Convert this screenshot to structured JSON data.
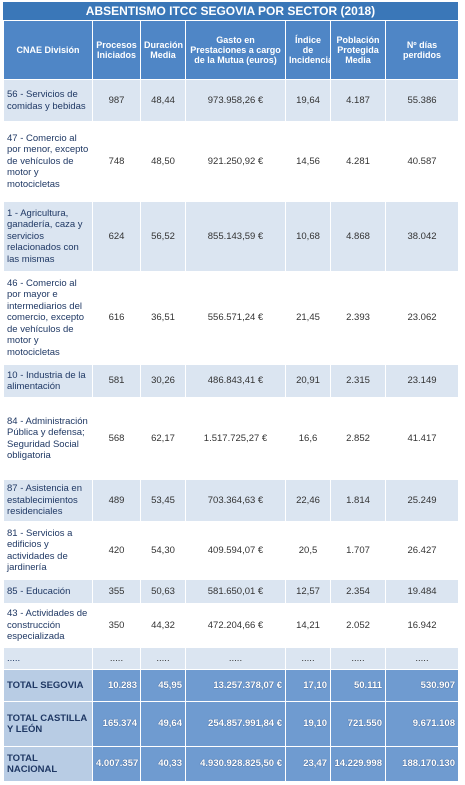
{
  "title": "ABSENTISMO ITCC SEGOVIA POR SECTOR (2018)",
  "table": {
    "headers": [
      "CNAE División",
      "Procesos Iniciados",
      "Duración Media",
      "Gasto en Prestaciones a cargo de la Mutua (euros)",
      "Índice de Incidencia",
      "Población Protegida Media",
      "Nº días perdidos"
    ],
    "rows": [
      [
        "56 - Servicios de comidas y bebidas",
        "987",
        "48,44",
        "973.958,26 €",
        "19,64",
        "4.187",
        "55.386"
      ],
      [
        "47 - Comercio al por menor, excepto de vehículos de motor y motocicletas",
        "748",
        "48,50",
        "921.250,92 €",
        "14,56",
        "4.281",
        "40.587"
      ],
      [
        "1 - Agricultura, ganadería, caza y servicios relacionados con las mismas",
        "624",
        "56,52",
        "855.143,59 €",
        "10,68",
        "4.868",
        "38.042"
      ],
      [
        "46 - Comercio al por mayor e intermediarios del comercio, excepto de vehículos de motor y motocicletas",
        "616",
        "36,51",
        "556.571,24 €",
        "21,45",
        "2.393",
        "23.062"
      ],
      [
        "10 - Industria de la alimentación",
        "581",
        "30,26",
        "486.843,41 €",
        "20,91",
        "2.315",
        "23.149"
      ],
      [
        "84 - Administración Pública y defensa; Seguridad Social obligatoria",
        "568",
        "62,17",
        "1.517.725,27 €",
        "16,6",
        "2.852",
        "41.417"
      ],
      [
        "87 - Asistencia en establecimientos residenciales",
        "489",
        "53,45",
        "703.364,63 €",
        "22,46",
        "1.814",
        "25.249"
      ],
      [
        "81 - Servicios a edificios y actividades de jardinería",
        "420",
        "54,30",
        "409.594,07 €",
        "20,5",
        "1.707",
        "26.427"
      ],
      [
        "85 - Educación",
        "355",
        "50,63",
        "581.650,01 €",
        "12,57",
        "2.354",
        "19.484"
      ],
      [
        "43 - Actividades de construcción especializada",
        "350",
        "44,32",
        "472.204,66 €",
        "14,21",
        "2.052",
        "16.942"
      ],
      [
        ".....",
        ".....",
        ".....",
        ".....",
        ".....",
        ".....",
        "....."
      ]
    ],
    "totals": [
      [
        "TOTAL SEGOVIA",
        "10.283",
        "45,95",
        "13.257.378,07 €",
        "17,10",
        "50.111",
        "530.907"
      ],
      [
        "TOTAL CASTILLA Y LEÓN",
        "165.374",
        "49,64",
        "254.857.991,84 €",
        "19,10",
        "721.550",
        "9.671.108"
      ],
      [
        "TOTAL NACIONAL",
        "4.007.357",
        "40,33",
        "4.930.928.825,50 €",
        "23,47",
        "14.229.998",
        "188.170.130"
      ]
    ]
  }
}
